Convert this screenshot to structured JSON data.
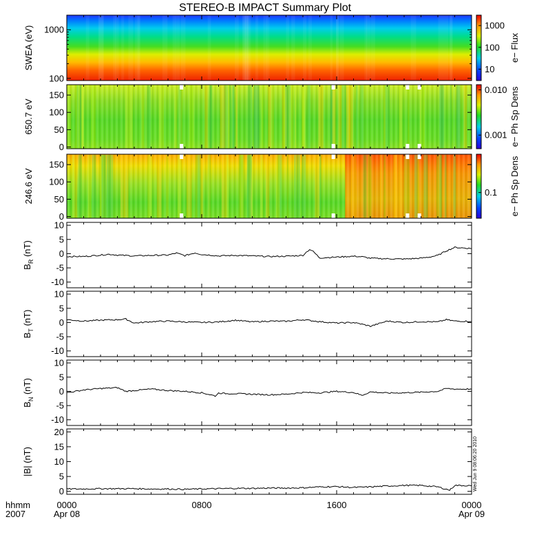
{
  "title": "STEREO-B IMPACT Summary Plot",
  "stamp": "Wed Jun 9 08:06:20 2010",
  "colors": {
    "axis": "#000000",
    "trace": "#000000"
  },
  "x_axis": {
    "row1_label": "hhmm",
    "row2_label": "2007",
    "ticks": [
      {
        "hour": 0,
        "time": "0000",
        "date": "Apr 08"
      },
      {
        "hour": 8,
        "time": "0800",
        "date": ""
      },
      {
        "hour": 16,
        "time": "1600",
        "date": ""
      },
      {
        "hour": 24,
        "time": "0000",
        "date": "Apr 09"
      }
    ],
    "range_hours": [
      0,
      24
    ]
  },
  "chart_data": [
    {
      "type": "heatmap",
      "ylabel": "SWEA (eV)",
      "yscale": "log",
      "ylim": [
        90,
        2000
      ],
      "yticks": [
        {
          "v": 100,
          "label": "100"
        },
        {
          "v": 1000,
          "label": "1000"
        }
      ],
      "colorbar": {
        "label": "e− Flux",
        "scale": "log",
        "range": [
          3,
          3000
        ],
        "ticks": [
          {
            "v": 10,
            "label": "10"
          },
          {
            "v": 100,
            "label": "100"
          },
          {
            "v": 1000,
            "label": "1000"
          }
        ]
      },
      "description_values": "Flux decreases with energy: ~3000 at 90 eV to ~5 at 2000 eV across the full day"
    },
    {
      "type": "heatmap",
      "ylabel": "650.7 eV",
      "yscale": "linear",
      "ylim": [
        -5,
        180
      ],
      "yticks": [
        {
          "v": 0,
          "label": "0"
        },
        {
          "v": 50,
          "label": "50"
        },
        {
          "v": 100,
          "label": "100"
        },
        {
          "v": 150,
          "label": "150"
        }
      ],
      "colorbar": {
        "label": "e− Ph Sp Dens",
        "scale": "log",
        "range": [
          0.0005,
          0.013
        ],
        "ticks": [
          {
            "v": 0.001,
            "label": "0.001"
          },
          {
            "v": 0.01,
            "label": "0.010"
          }
        ]
      }
    },
    {
      "type": "heatmap",
      "ylabel": "246.6 eV",
      "yscale": "linear",
      "ylim": [
        -5,
        180
      ],
      "yticks": [
        {
          "v": 0,
          "label": "0"
        },
        {
          "v": 50,
          "label": "50"
        },
        {
          "v": 100,
          "label": "100"
        },
        {
          "v": 150,
          "label": "150"
        }
      ],
      "colorbar": {
        "label": "e− Ph Sp Dens",
        "scale": "log",
        "range": [
          0.03,
          0.6
        ],
        "ticks": [
          {
            "v": 0.1,
            "label": "0.1"
          }
        ]
      }
    },
    {
      "type": "line",
      "ylabel_main": "B",
      "ylabel_sub": "R",
      "ylabel_unit": " (nT)",
      "ylim": [
        -12,
        11
      ],
      "yticks": [
        -10,
        -5,
        0,
        5,
        10
      ],
      "x": [
        0,
        1,
        2,
        2.5,
        3,
        4,
        5,
        6,
        6.5,
        7,
        7.3,
        7.6,
        8,
        8.5,
        9,
        10,
        11,
        12,
        13,
        14,
        14.2,
        14.4,
        14.6,
        15,
        16,
        17,
        17.5,
        18,
        19,
        20,
        21,
        21.5,
        22,
        22.5,
        23,
        24
      ],
      "y": [
        -1.0,
        -1.0,
        -0.5,
        -0.2,
        -0.5,
        -0.8,
        -0.6,
        -0.5,
        0.2,
        -0.7,
        -0.2,
        0.3,
        -0.3,
        -0.5,
        -0.8,
        -0.6,
        -0.8,
        -1.0,
        -0.9,
        -0.6,
        0.5,
        1.5,
        0.8,
        -1.5,
        -1.2,
        -0.9,
        -1.1,
        -1.6,
        -1.8,
        -1.9,
        -1.6,
        -1.2,
        -0.6,
        1.0,
        2.2,
        1.8
      ]
    },
    {
      "type": "line",
      "ylabel_main": "B",
      "ylabel_sub": "T",
      "ylabel_unit": " (nT)",
      "ylim": [
        -12,
        11
      ],
      "yticks": [
        -10,
        -5,
        0,
        5,
        10
      ],
      "x": [
        0,
        1,
        2,
        3,
        3.5,
        4,
        5,
        6,
        7,
        8,
        9,
        10,
        11,
        12,
        13,
        14,
        15,
        16,
        17,
        17.5,
        18,
        19,
        20,
        21,
        22,
        22.5,
        23,
        24
      ],
      "y": [
        1.0,
        0.5,
        0.8,
        1.0,
        1.2,
        -0.2,
        0.3,
        0.5,
        0.2,
        0.0,
        0.2,
        0.8,
        0.2,
        0.5,
        0.4,
        1.0,
        0.3,
        -0.2,
        0.0,
        -0.6,
        -1.3,
        0.5,
        0.0,
        0.3,
        0.2,
        1.0,
        0.5,
        0.4
      ]
    },
    {
      "type": "line",
      "ylabel_main": "B",
      "ylabel_sub": "N",
      "ylabel_unit": " (nT)",
      "ylim": [
        -12,
        11
      ],
      "yticks": [
        -10,
        -5,
        0,
        5,
        10
      ],
      "x": [
        0,
        1,
        2,
        3,
        3.5,
        4,
        5,
        6,
        7,
        8,
        8.8,
        9,
        9.5,
        10,
        11,
        12,
        13,
        14,
        15,
        16,
        17,
        17.5,
        18,
        19,
        20,
        21,
        22,
        22.5,
        23,
        24
      ],
      "y": [
        -0.5,
        0.5,
        1.0,
        1.3,
        0.0,
        0.3,
        0.8,
        0.3,
        0.0,
        -0.5,
        -1.6,
        -0.6,
        -0.8,
        -0.8,
        -1.0,
        -1.2,
        -1.0,
        -0.4,
        -0.5,
        0.0,
        -0.4,
        -1.4,
        -0.2,
        -0.6,
        -0.5,
        -0.3,
        0.0,
        1.0,
        0.8,
        0.8
      ]
    },
    {
      "type": "line",
      "ylabel_main": "|B|",
      "ylabel_sub": "",
      "ylabel_unit": " (nT)",
      "ylim": [
        -1,
        21
      ],
      "yticks": [
        0,
        5,
        10,
        15,
        20
      ],
      "x": [
        0,
        1,
        2,
        3,
        4,
        5,
        6,
        7,
        8,
        9,
        10,
        11,
        12,
        13,
        14,
        15,
        16,
        17,
        18,
        19,
        20,
        21,
        22,
        22.7,
        23,
        24
      ],
      "y": [
        0.8,
        0.8,
        0.9,
        0.9,
        0.9,
        0.8,
        0.8,
        0.7,
        0.8,
        0.9,
        1.0,
        1.0,
        1.1,
        1.1,
        1.2,
        1.5,
        1.6,
        1.3,
        1.5,
        1.8,
        2.0,
        2.0,
        1.5,
        0.4,
        2.0,
        1.9
      ]
    }
  ]
}
